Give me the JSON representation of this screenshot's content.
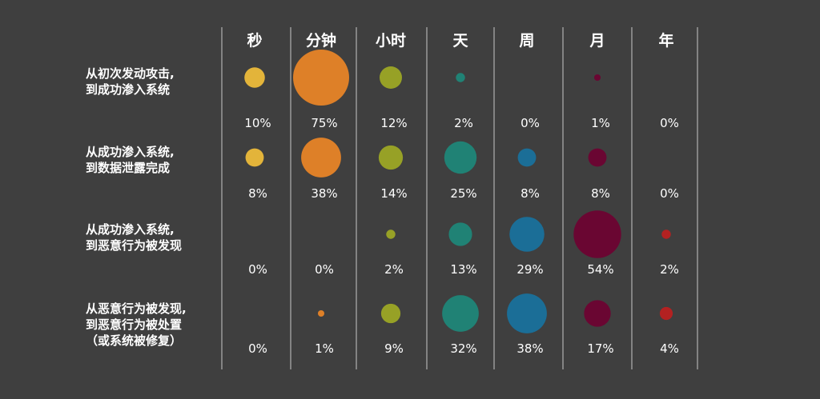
{
  "chart_data": {
    "type": "bubble-matrix",
    "title": "",
    "columns": [
      "秒",
      "分钟",
      "小时",
      "天",
      "周",
      "月",
      "年"
    ],
    "column_colors": [
      "#e3b43a",
      "#de8028",
      "#97a126",
      "#208275",
      "#1b6e97",
      "#6a0632",
      "#b32121"
    ],
    "rows": [
      {
        "label_lines": [
          "从初次发动攻击,",
          "到成功渗入系统"
        ],
        "values": [
          10,
          75,
          12,
          2,
          0,
          1,
          0
        ],
        "value_labels": [
          "10%",
          "75%",
          "12%",
          "2%",
          "0%",
          "1%",
          "0%"
        ]
      },
      {
        "label_lines": [
          "从成功渗入系统,",
          "到数据泄露完成"
        ],
        "values": [
          8,
          38,
          14,
          25,
          8,
          8,
          0
        ],
        "value_labels": [
          "8%",
          "38%",
          "14%",
          "25%",
          "8%",
          "8%",
          "0%"
        ]
      },
      {
        "label_lines": [
          "从成功渗入系统,",
          "到恶意行为被发现"
        ],
        "values": [
          0,
          0,
          2,
          13,
          29,
          54,
          2
        ],
        "value_labels": [
          "0%",
          "0%",
          "2%",
          "13%",
          "29%",
          "54%",
          "2%"
        ]
      },
      {
        "label_lines": [
          "从恶意行为被发现,",
          "到恶意行为被处置",
          "（或系统被修复）"
        ],
        "values": [
          0,
          1,
          9,
          32,
          38,
          17,
          4
        ],
        "value_labels": [
          "0%",
          "1%",
          "9%",
          "32%",
          "38%",
          "17%",
          "4%"
        ]
      }
    ],
    "value_unit": "%",
    "grid": false,
    "legend": "none"
  }
}
